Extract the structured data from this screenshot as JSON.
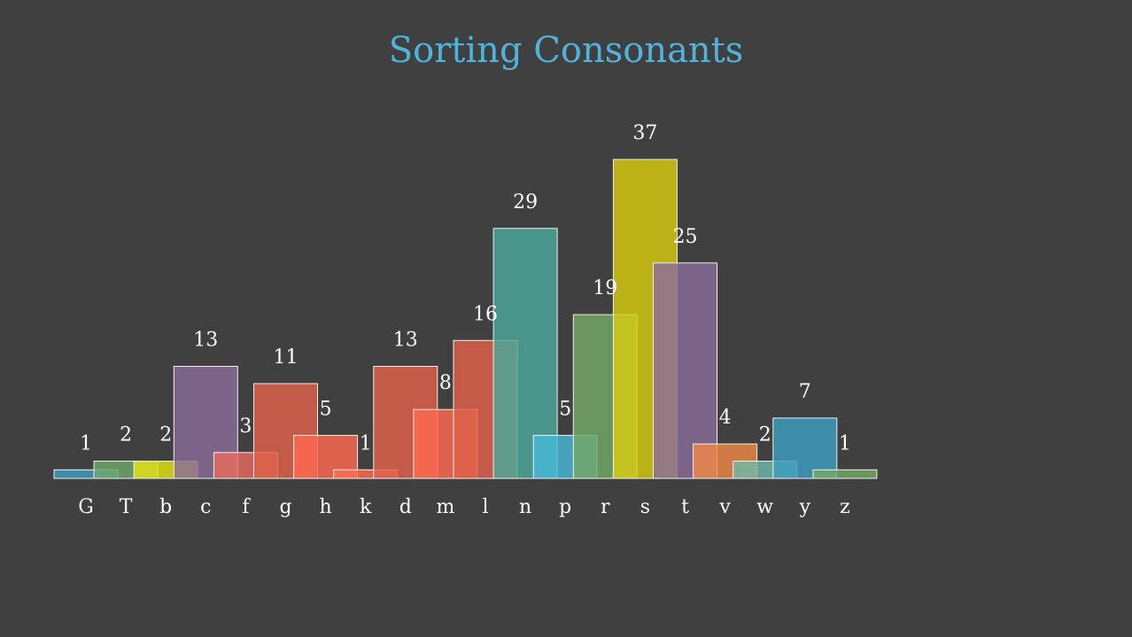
{
  "chart_data": {
    "type": "bar",
    "title": "Sorting Consonants",
    "xlabel": "",
    "ylabel": "",
    "ylim": [
      0,
      37
    ],
    "grid": false,
    "categories": [
      "G",
      "T",
      "b",
      "c",
      "f",
      "g",
      "h",
      "k",
      "d",
      "m",
      "l",
      "n",
      "p",
      "r",
      "s",
      "t",
      "v",
      "w",
      "y",
      "z"
    ],
    "values": [
      1,
      2,
      2,
      13,
      3,
      11,
      5,
      1,
      13,
      8,
      16,
      29,
      5,
      19,
      37,
      25,
      4,
      2,
      7,
      1
    ],
    "colors": [
      "#3d9ec0",
      "#6fa86a",
      "#e5e314",
      "#8a6d9a",
      "#e86a5e",
      "#e0624a",
      "#ff6a50",
      "#ff6d50",
      "#e0624a",
      "#ff6a50",
      "#e0624a",
      "#4aa89a",
      "#48b8d8",
      "#74a866",
      "#d8cc10",
      "#8a6d9a",
      "#f08848",
      "#6fb8a8",
      "#3d9ec0",
      "#74a866"
    ],
    "title_color": "#4fb4dd",
    "background": "#404040"
  }
}
